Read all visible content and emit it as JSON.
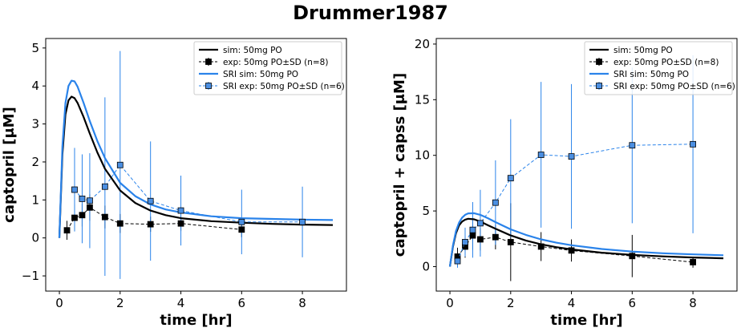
{
  "figure": {
    "title": "Drummer1987"
  },
  "colors": {
    "sim": "#000000",
    "sri": "#2a83ea",
    "sri_marker": "#4b8fe2"
  },
  "chart_data": [
    {
      "type": "line",
      "xlabel": "time [hr]",
      "ylabel": "captopril [μM]",
      "xlim": [
        -0.45,
        9.45
      ],
      "ylim": [
        -1.4,
        5.25
      ],
      "xticks": [
        0,
        2,
        4,
        6,
        8
      ],
      "yticks": [
        -1,
        0,
        1,
        2,
        3,
        4,
        5
      ],
      "grid": false,
      "legend": "top-right",
      "lines": [
        {
          "name": "sim: 50mg PO",
          "color": "#000000",
          "x": [
            0,
            0.1,
            0.2,
            0.3,
            0.4,
            0.5,
            0.6,
            0.8,
            1.0,
            1.25,
            1.5,
            2.0,
            2.5,
            3.0,
            3.5,
            4.0,
            5.0,
            6.0,
            7.0,
            8.0,
            9.0
          ],
          "y": [
            0,
            2.2,
            3.25,
            3.62,
            3.72,
            3.68,
            3.55,
            3.18,
            2.75,
            2.25,
            1.82,
            1.25,
            0.92,
            0.72,
            0.6,
            0.52,
            0.44,
            0.4,
            0.37,
            0.35,
            0.34
          ]
        },
        {
          "name": "SRI sim: 50mg PO",
          "color": "#2a83ea",
          "x": [
            0,
            0.1,
            0.2,
            0.3,
            0.4,
            0.5,
            0.6,
            0.8,
            1.0,
            1.25,
            1.5,
            2.0,
            2.5,
            3.0,
            3.5,
            4.0,
            5.0,
            6.0,
            7.0,
            8.0,
            9.0
          ],
          "y": [
            0,
            2.4,
            3.55,
            4.0,
            4.14,
            4.12,
            3.98,
            3.55,
            3.08,
            2.55,
            2.1,
            1.45,
            1.1,
            0.88,
            0.75,
            0.67,
            0.57,
            0.52,
            0.5,
            0.48,
            0.47
          ]
        }
      ],
      "errorbars": [
        {
          "name": "exp: 50mg PO±SD (n=8)",
          "color": "#000000",
          "marker_color": "#000000",
          "x": [
            0.25,
            0.5,
            0.75,
            1.0,
            1.5,
            2.0,
            3.0,
            4.0,
            6.0
          ],
          "y": [
            0.2,
            0.53,
            0.6,
            0.8,
            0.55,
            0.38,
            0.36,
            0.38,
            0.22
          ],
          "sd": [
            0.25,
            0.35,
            0.3,
            0.35,
            0.3,
            0.25,
            0.2,
            0.2,
            0.2
          ]
        },
        {
          "name": "SRI exp: 50mg PO±SD (n=6)",
          "color": "#2a83ea",
          "marker_color": "#4b8fe2",
          "x": [
            0.5,
            0.75,
            1.0,
            1.5,
            2.0,
            3.0,
            4.0,
            6.0,
            8.0
          ],
          "y": [
            1.27,
            1.03,
            0.98,
            1.35,
            1.92,
            0.97,
            0.72,
            0.42,
            0.42
          ],
          "sd": [
            1.1,
            1.17,
            1.25,
            2.35,
            3.0,
            1.57,
            0.92,
            0.85,
            0.93
          ]
        }
      ]
    },
    {
      "type": "line",
      "xlabel": "time [hr]",
      "ylabel": "captopril + capss [μM]",
      "xlim": [
        -0.45,
        9.45
      ],
      "ylim": [
        -2.2,
        20.5
      ],
      "xticks": [
        0,
        2,
        4,
        6,
        8
      ],
      "yticks": [
        0,
        5,
        10,
        15,
        20
      ],
      "grid": false,
      "legend": "top-right",
      "lines": [
        {
          "name": "sim: 50mg PO",
          "color": "#000000",
          "x": [
            0,
            0.1,
            0.2,
            0.3,
            0.4,
            0.5,
            0.6,
            0.8,
            1.0,
            1.25,
            1.5,
            2.0,
            2.5,
            3.0,
            3.5,
            4.0,
            5.0,
            6.0,
            7.0,
            8.0,
            9.0
          ],
          "y": [
            0,
            1.8,
            3.0,
            3.7,
            4.05,
            4.22,
            4.3,
            4.25,
            4.05,
            3.72,
            3.4,
            2.8,
            2.35,
            2.0,
            1.75,
            1.55,
            1.25,
            1.05,
            0.92,
            0.82,
            0.75
          ]
        },
        {
          "name": "SRI sim: 50mg PO",
          "color": "#2a83ea",
          "x": [
            0,
            0.1,
            0.2,
            0.3,
            0.4,
            0.5,
            0.6,
            0.8,
            1.0,
            1.25,
            1.5,
            2.0,
            2.5,
            3.0,
            3.5,
            4.0,
            5.0,
            6.0,
            7.0,
            8.0,
            9.0
          ],
          "y": [
            0,
            1.9,
            3.2,
            3.95,
            4.4,
            4.65,
            4.78,
            4.8,
            4.65,
            4.35,
            4.0,
            3.35,
            2.85,
            2.45,
            2.15,
            1.92,
            1.58,
            1.35,
            1.2,
            1.1,
            1.02
          ]
        }
      ],
      "errorbars": [
        {
          "name": "exp: 50mg PO±SD (n=8)",
          "color": "#000000",
          "marker_color": "#000000",
          "x": [
            0.25,
            0.5,
            0.75,
            1.0,
            1.5,
            2.0,
            3.0,
            4.0,
            6.0,
            8.0
          ],
          "y": [
            0.9,
            1.8,
            2.8,
            2.45,
            2.65,
            2.2,
            1.8,
            1.45,
            0.95,
            0.4
          ],
          "sd": [
            0.8,
            1.0,
            1.3,
            1.0,
            1.1,
            3.5,
            1.3,
            1.0,
            1.9,
            0.5
          ]
        },
        {
          "name": "SRI exp: 50mg PO±SD (n=6)",
          "color": "#2a83ea",
          "marker_color": "#4b8fe2",
          "x": [
            0.25,
            0.5,
            0.75,
            1.0,
            1.5,
            2.0,
            3.0,
            4.0,
            6.0,
            8.0
          ],
          "y": [
            0.5,
            2.2,
            3.3,
            3.9,
            5.75,
            7.95,
            10.05,
            9.9,
            10.9,
            11.0
          ],
          "sd": [
            0.6,
            1.3,
            2.5,
            3.0,
            3.8,
            5.3,
            6.55,
            6.5,
            7.0,
            8.0
          ]
        }
      ]
    }
  ]
}
